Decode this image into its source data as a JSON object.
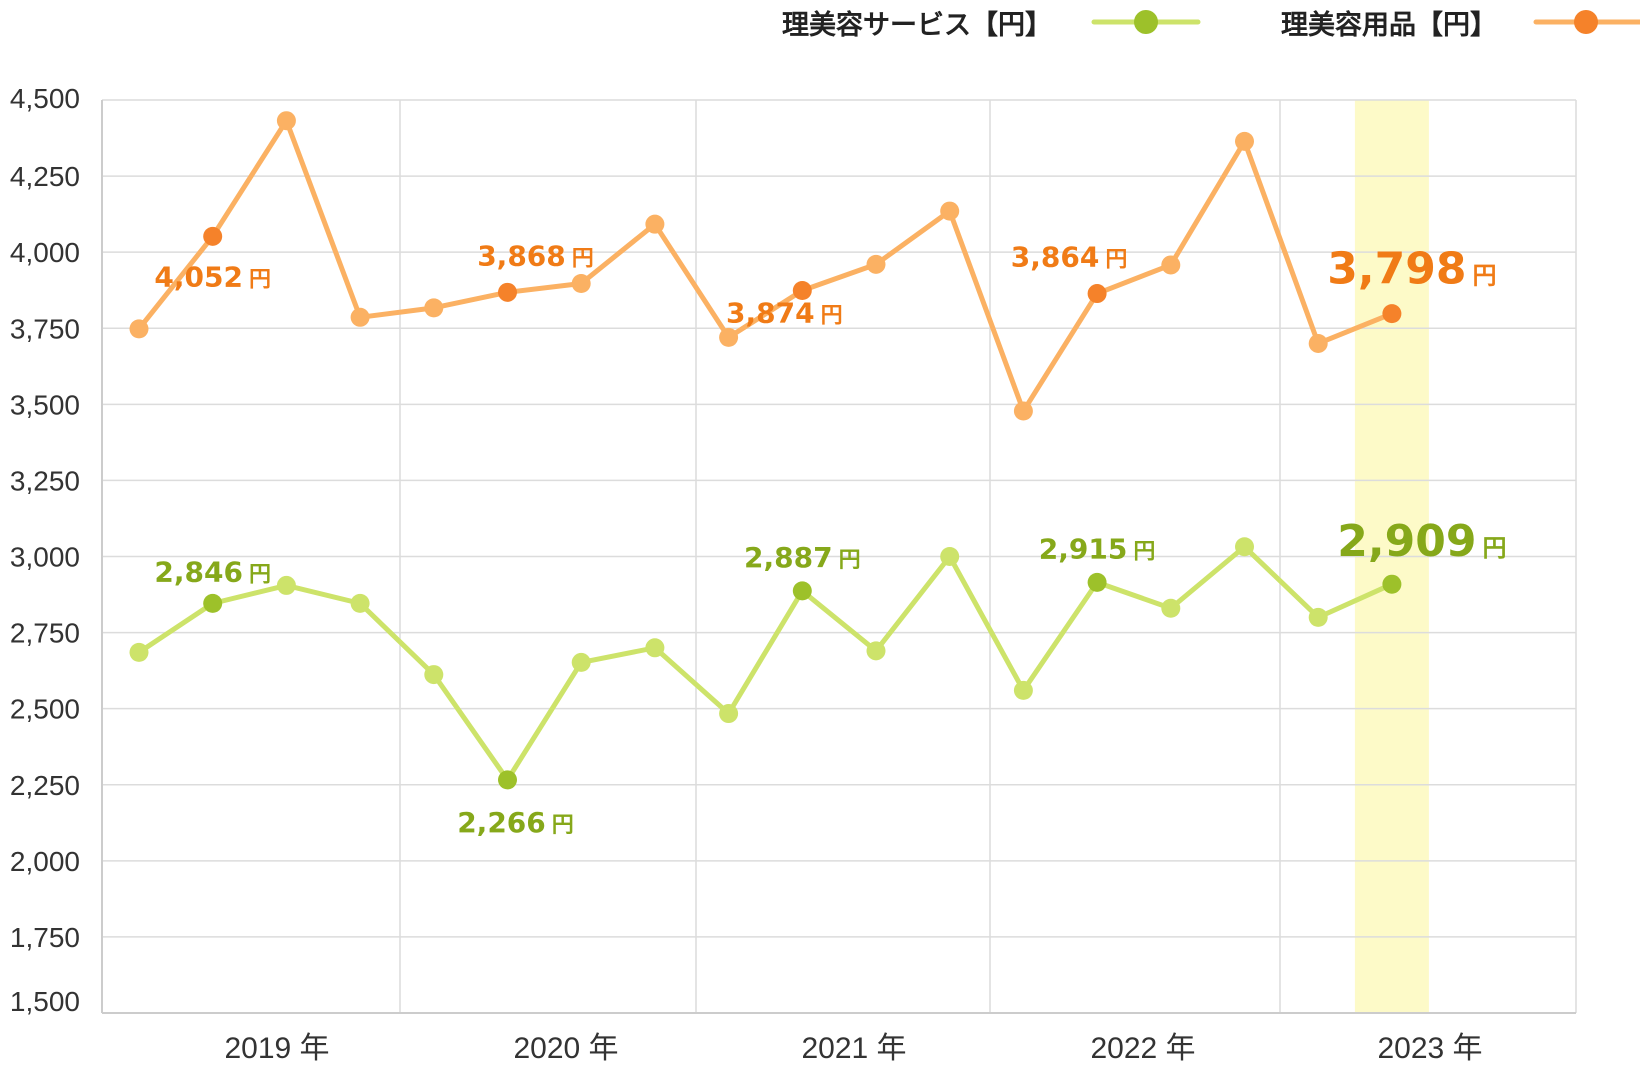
{
  "chart_data": {
    "type": "line",
    "ylim": [
      1500,
      4500
    ],
    "yticks": [
      1500,
      1750,
      2000,
      2250,
      2500,
      2750,
      3000,
      3250,
      3500,
      3750,
      4000,
      4250,
      4500
    ],
    "ytick_labels": [
      "1,500",
      "1,750",
      "2,000",
      "2,250",
      "2,500",
      "2,750",
      "3,000",
      "3,250",
      "3,500",
      "3,750",
      "4,000",
      "4,250",
      "4,500"
    ],
    "year_labels": [
      "2019 年",
      "2020 年",
      "2021 年",
      "2022 年",
      "2023 年"
    ],
    "grid": true,
    "legend_position": "top-right",
    "highlight_index": 17,
    "highlight_color": "#fdfac8",
    "series": [
      {
        "name": "理美容サービス【円】",
        "line_color": "#cde36a",
        "marker_color": "#cde36a",
        "accent_color": "#9dc12a",
        "label_color": "#86a81a",
        "values": [
          2685,
          2846,
          2905,
          2846,
          2612,
          2266,
          2652,
          2700,
          2484,
          2887,
          2690,
          3000,
          2560,
          2915,
          2830,
          3032,
          2800,
          2909
        ],
        "labels": [
          {
            "index": 1,
            "text": "2,846",
            "unit": "円"
          },
          {
            "index": 5,
            "text": "2,266",
            "unit": "円"
          },
          {
            "index": 9,
            "text": "2,887",
            "unit": "円"
          },
          {
            "index": 13,
            "text": "2,915",
            "unit": "円"
          },
          {
            "index": 17,
            "text": "2,909",
            "unit": "円"
          }
        ]
      },
      {
        "name": "理美容用品【円】",
        "line_color": "#fbb163",
        "marker_color": "#fbb163",
        "accent_color": "#f5822a",
        "label_color": "#f07b16",
        "values": [
          3748,
          4052,
          4432,
          3786,
          3817,
          3868,
          3897,
          4092,
          3720,
          3874,
          3960,
          4135,
          3478,
          3864,
          3958,
          4364,
          3700,
          3798
        ],
        "labels": [
          {
            "index": 1,
            "text": "4,052",
            "unit": "円"
          },
          {
            "index": 5,
            "text": "3,868",
            "unit": "円"
          },
          {
            "index": 9,
            "text": "3,874",
            "unit": "円"
          },
          {
            "index": 13,
            "text": "3,864",
            "unit": "円"
          },
          {
            "index": 17,
            "text": "3,798",
            "unit": "円"
          }
        ]
      }
    ]
  }
}
